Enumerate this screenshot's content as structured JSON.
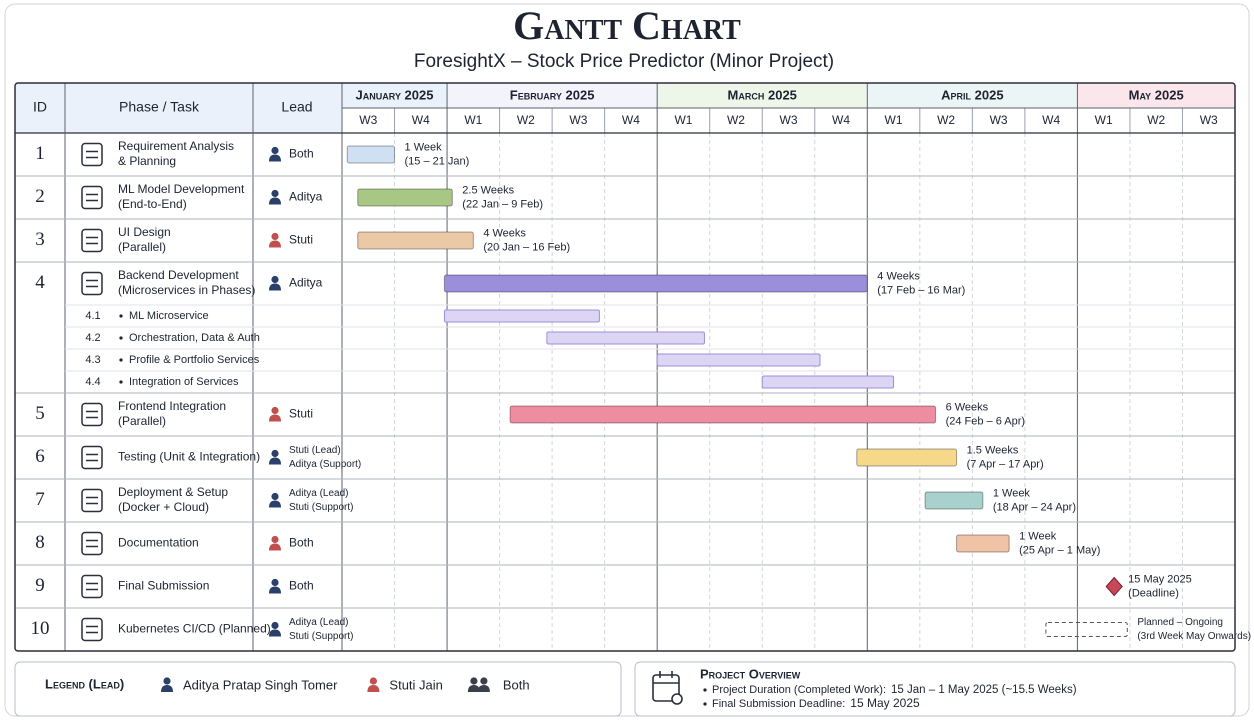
{
  "chart_data": {
    "type": "gantt",
    "title": "Gantt Chart",
    "subtitle": "ForesightX – Stock Price Predictor (Minor Project)",
    "columns": [
      "ID",
      "Phase / Task",
      "Lead"
    ],
    "months": [
      {
        "label": "January 2025",
        "color": "#e9f1fb",
        "weeks": [
          "W3",
          "W4"
        ]
      },
      {
        "label": "February 2025",
        "color": "#f4f2fb",
        "weeks": [
          "W1",
          "W2",
          "W3",
          "W4"
        ]
      },
      {
        "label": "March 2025",
        "color": "#edf6e9",
        "weeks": [
          "W1",
          "W2",
          "W3",
          "W4"
        ]
      },
      {
        "label": "April 2025",
        "color": "#ebf5f6",
        "weeks": [
          "W1",
          "W2",
          "W3",
          "W4"
        ]
      },
      {
        "label": "May 2025",
        "color": "#fbe7eb",
        "weeks": [
          "W1",
          "W2",
          "W3"
        ]
      }
    ],
    "xlim": [
      0,
      17
    ],
    "tasks": [
      {
        "id": "1",
        "name": [
          "Requirement Analysis",
          "& Planning"
        ],
        "lead": [
          "Both"
        ],
        "lead_color": "#2b3f6b",
        "start": 0.1,
        "end": 1.0,
        "color": "#cfe0f3",
        "label": [
          "1 Week",
          "(15 – 21 Jan)"
        ]
      },
      {
        "id": "2",
        "name": [
          "ML Model Development",
          "(End-to-End)"
        ],
        "lead": [
          "Aditya"
        ],
        "lead_color": "#2b3f6b",
        "start": 0.3,
        "end": 2.1,
        "color": "#a9c784",
        "label": [
          "2.5 Weeks",
          "(22 Jan – 9 Feb)"
        ]
      },
      {
        "id": "3",
        "name": [
          "UI Design",
          "(Parallel)"
        ],
        "lead": [
          "Stuti"
        ],
        "lead_color": "#c0504d",
        "start": 0.3,
        "end": 2.5,
        "color": "#ecc9a6",
        "label": [
          "4 Weeks",
          "(20 Jan – 16 Feb)"
        ]
      },
      {
        "id": "4",
        "name": [
          "Backend Development",
          "(Microservices in Phases)"
        ],
        "lead": [
          "Aditya"
        ],
        "lead_color": "#2b3f6b",
        "start": 1.95,
        "end": 10.0,
        "color": "#9b8fdc",
        "label": [
          "4 Weeks",
          "(17 Feb – 16 Mar)"
        ],
        "subtask_color": "#dcd5f4",
        "subtasks": [
          {
            "id": "4.1",
            "name": "ML Microservice",
            "start": 1.95,
            "end": 4.9
          },
          {
            "id": "4.2",
            "name": "Orchestration, Data & Auth",
            "start": 3.9,
            "end": 6.9
          },
          {
            "id": "4.3",
            "name": "Profile & Portfolio Services",
            "start": 6.0,
            "end": 9.1
          },
          {
            "id": "4.4",
            "name": "Integration of Services",
            "start": 8.0,
            "end": 10.5
          }
        ]
      },
      {
        "id": "5",
        "name": [
          "Frontend Integration",
          "(Parallel)"
        ],
        "lead": [
          "Stuti"
        ],
        "lead_color": "#c0504d",
        "start": 3.2,
        "end": 11.3,
        "color": "#ee8ca0",
        "label": [
          "6 Weeks",
          "(24 Feb – 6 Apr)"
        ]
      },
      {
        "id": "6",
        "name": [
          "Testing (Unit & Integration)"
        ],
        "lead": [
          "Stuti (Lead)",
          "Aditya (Support)"
        ],
        "lead_color": "#2b3f6b",
        "start": 9.8,
        "end": 11.7,
        "color": "#f5d88a",
        "label": [
          "1.5 Weeks",
          "(7 Apr – 17 Apr)"
        ]
      },
      {
        "id": "7",
        "name": [
          "Deployment & Setup",
          "(Docker + Cloud)"
        ],
        "lead": [
          "Aditya (Lead)",
          "Stuti (Support)"
        ],
        "lead_color": "#2b3f6b",
        "start": 11.1,
        "end": 12.2,
        "color": "#a8d0cd",
        "label": [
          "1 Week",
          "(18 Apr – 24 Apr)"
        ]
      },
      {
        "id": "8",
        "name": [
          "Documentation"
        ],
        "lead": [
          "Both"
        ],
        "lead_color": "#c0504d",
        "start": 11.7,
        "end": 12.7,
        "color": "#f0c2a6",
        "label": [
          "1 Week",
          "(25 Apr – 1 May)"
        ]
      },
      {
        "id": "9",
        "name": [
          "Final Submission"
        ],
        "lead": [
          "Both"
        ],
        "lead_color": "#2b3f6b",
        "start": 14.7,
        "color": "#c8485a",
        "label": [
          "15 May 2025",
          "(Deadline)"
        ]
      },
      {
        "id": "10",
        "name": [
          "Kubernetes CI/CD (Planned)"
        ],
        "lead": [
          "Aditya (Lead)",
          "Stuti (Support)"
        ],
        "lead_color": "#2b3f6b",
        "start": 13.4,
        "end": 14.95,
        "line_style": "dashed",
        "label": [
          "Planned – Ongoing",
          "(3rd Week May Onwards)"
        ]
      }
    ]
  },
  "legend": {
    "title": "Legend (Lead)",
    "items": [
      {
        "label": "Aditya Pratap Singh Tomer",
        "color": "#2b3f6b"
      },
      {
        "label": "Stuti Jain",
        "color": "#c0504d"
      },
      {
        "label": "Both",
        "color": "#3a3f4a"
      }
    ]
  },
  "overview": {
    "title": "Project Overview",
    "lines": [
      {
        "label": "Project Duration (Completed Work):",
        "value": "15 Jan – 1 May 2025 (~15.5 Weeks)"
      },
      {
        "label": "Final Submission Deadline:",
        "value": "15 May 2025"
      }
    ]
  }
}
